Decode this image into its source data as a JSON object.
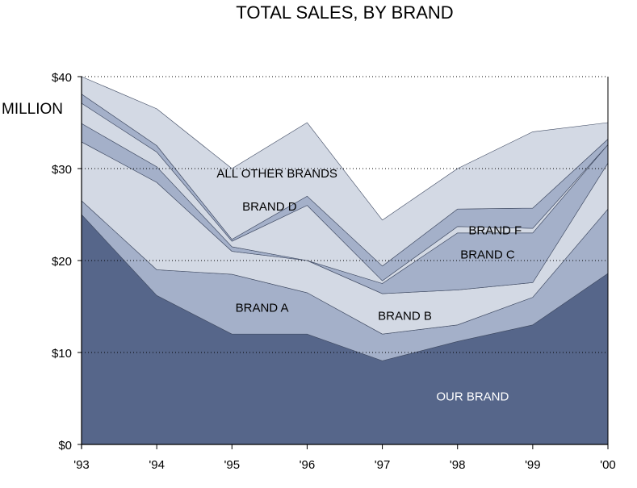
{
  "chart_data": {
    "type": "area",
    "stacked": true,
    "title": "TOTAL SALES, BY BRAND",
    "ylabel": "MILLION",
    "x": [
      "'93",
      "'94",
      "'95",
      "'96",
      "'97",
      "'98",
      "'99",
      "'00"
    ],
    "y_ticks": [
      "$0",
      "$10",
      "$20",
      "$30",
      "$40"
    ],
    "ylim": [
      0,
      40
    ],
    "grid": "horizontal dotted",
    "series": [
      {
        "name": "OUR BRAND",
        "values": [
          25,
          16.2,
          12,
          12,
          9.1,
          11.2,
          13,
          18.6
        ],
        "color": "#56668a"
      },
      {
        "name": "BRAND A",
        "values": [
          1.5,
          2.8,
          6.5,
          4.5,
          2.9,
          1.8,
          3,
          7
        ],
        "color": "#a4b0c9"
      },
      {
        "name": "BRAND B",
        "values": [
          6.4,
          9.5,
          2.5,
          3.5,
          4.4,
          3.8,
          1.6,
          5
        ],
        "color": "#d3d9e4"
      },
      {
        "name": "BRAND C",
        "values": [
          2,
          1.7,
          0.5,
          0,
          1.1,
          6.2,
          5.4,
          2
        ],
        "color": "#a4b0c9"
      },
      {
        "name": "BRAND F",
        "values": [
          2.2,
          1.6,
          0.6,
          6,
          0.3,
          0.7,
          0.5,
          0
        ],
        "color": "#d3d9e4"
      },
      {
        "name": "BRAND D",
        "values": [
          1,
          0.7,
          0.2,
          1,
          1.6,
          1.9,
          2.2,
          0.6
        ],
        "color": "#a4b0c9"
      },
      {
        "name": "ALL OTHER BRANDS",
        "values": [
          1.9,
          4,
          7.7,
          8,
          5,
          4.4,
          8.3,
          1.8
        ],
        "color": "#d3d9e4"
      }
    ]
  }
}
